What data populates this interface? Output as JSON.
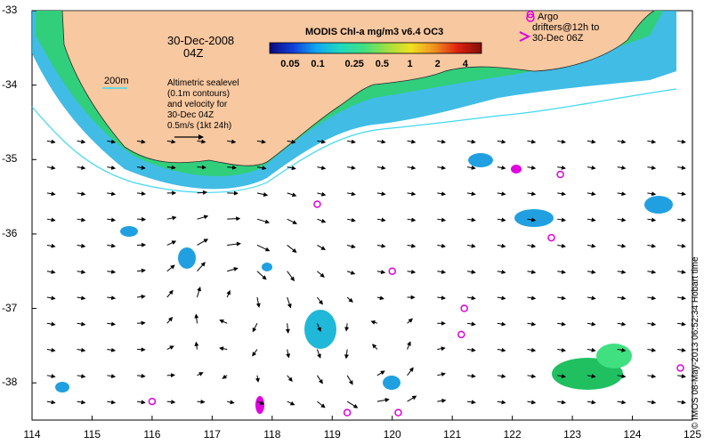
{
  "title": {
    "product": "MODIS Chl-a mg/m3 v6.4 OC3",
    "date": "30-Dec-2008",
    "time": "04Z"
  },
  "colorbar": {
    "ticks": [
      "0.05",
      "0.1",
      "0.25",
      "0.5",
      "1",
      "2",
      "4"
    ],
    "colors": [
      "#0a0a80",
      "#1040d8",
      "#10a8f0",
      "#20d8c0",
      "#40e080",
      "#a0e040",
      "#f0e020",
      "#f09020",
      "#e02010",
      "#801008"
    ]
  },
  "legend": {
    "isobath": "200m",
    "sealevel_lines": [
      "Altimetric sealevel",
      "(0.1m contours)",
      "and velocity for",
      "30-Dec 04Z",
      "0.5m/s (1kt 24h)"
    ],
    "argo_lines": [
      "Argo",
      "drifters@12h to",
      "30-Dec 06Z"
    ]
  },
  "axes": {
    "x_ticks": [
      "114",
      "115",
      "116",
      "117",
      "118",
      "119",
      "120",
      "121",
      "122",
      "123",
      "124",
      "125"
    ],
    "y_ticks": [
      "-33",
      "-34",
      "-35",
      "-36",
      "-37",
      "-38"
    ],
    "lon_range": [
      114,
      125
    ],
    "lat_range": [
      -38.5,
      -33
    ]
  },
  "credit": "© IMOS 08-May-2013 06:52:34 Hobart time",
  "argo_floats": [
    {
      "lon": 122.3,
      "lat": -33.05
    },
    {
      "lon": 122.8,
      "lat": -35.2
    },
    {
      "lon": 118.75,
      "lat": -35.6
    },
    {
      "lon": 122.65,
      "lat": -36.05
    },
    {
      "lon": 120.0,
      "lat": -36.5
    },
    {
      "lon": 121.2,
      "lat": -37.0
    },
    {
      "lon": 121.15,
      "lat": -37.35
    },
    {
      "lon": 124.8,
      "lat": -37.8
    },
    {
      "lon": 116.0,
      "lat": -38.25
    },
    {
      "lon": 119.25,
      "lat": -38.4
    },
    {
      "lon": 120.1,
      "lat": -38.4
    }
  ],
  "colors": {
    "land": "#f8c8a0",
    "isobath": "#40d8f0",
    "argo": "#e000e0",
    "coast_chl": "#20c060"
  }
}
